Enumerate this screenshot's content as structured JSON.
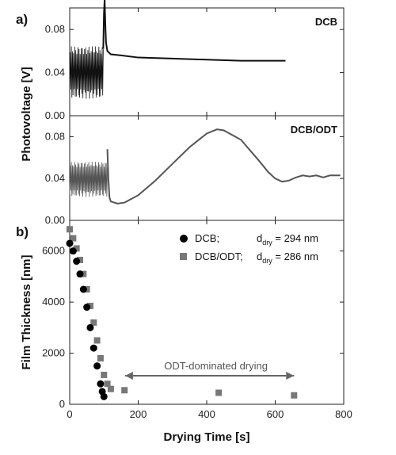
{
  "chart_data": [
    {
      "panel": "a)",
      "type": "line",
      "label": "DCB",
      "ylabel": "Photovoltage [V]",
      "xlim": [
        0,
        800
      ],
      "ylim": [
        0,
        0.1
      ],
      "yticks": [
        "0.00",
        "0.04",
        "0.08"
      ],
      "ytick_values": [
        0,
        0.04,
        0.08
      ],
      "color": "#111111",
      "oscillation": {
        "x_start": 0,
        "x_end": 98,
        "low": 0.018,
        "high": 0.063
      },
      "x": [
        98,
        100,
        102,
        104,
        106,
        110,
        120,
        150,
        200,
        300,
        400,
        500,
        600,
        630
      ],
      "y": [
        0.062,
        0.095,
        0.108,
        0.085,
        0.068,
        0.06,
        0.057,
        0.056,
        0.054,
        0.053,
        0.052,
        0.051,
        0.051,
        0.051
      ]
    },
    {
      "panel": "",
      "type": "line",
      "label": "DCB/ODT",
      "ylabel": "",
      "xlim": [
        0,
        800
      ],
      "ylim": [
        0,
        0.1
      ],
      "yticks": [
        "0.00",
        "0.04",
        "0.08"
      ],
      "ytick_values": [
        0,
        0.04,
        0.08
      ],
      "color": "#555555",
      "oscillation": {
        "x_start": 0,
        "x_end": 110,
        "low": 0.024,
        "high": 0.055
      },
      "x": [
        110,
        113,
        116,
        120,
        140,
        160,
        200,
        250,
        300,
        350,
        400,
        430,
        450,
        500,
        550,
        580,
        600,
        620,
        640,
        660,
        680,
        700,
        720,
        740,
        760,
        790
      ],
      "y": [
        0.068,
        0.04,
        0.022,
        0.018,
        0.016,
        0.017,
        0.024,
        0.038,
        0.054,
        0.07,
        0.083,
        0.087,
        0.086,
        0.077,
        0.058,
        0.046,
        0.04,
        0.037,
        0.038,
        0.041,
        0.043,
        0.042,
        0.043,
        0.041,
        0.043,
        0.043
      ]
    },
    {
      "panel": "b)",
      "type": "scatter",
      "xlabel": "Drying Time [s]",
      "ylabel": "Film Thickness [nm]",
      "xlim": [
        0,
        800
      ],
      "ylim": [
        0,
        7200
      ],
      "xticks": [
        0,
        200,
        400,
        600,
        800
      ],
      "yticks": [
        0,
        2000,
        4000,
        6000
      ],
      "series": [
        {
          "name": "DCB;",
          "legend_value_prefix": "d",
          "legend_value_sub": "dry",
          "legend_value_suffix": " = 294 nm",
          "marker": "circle",
          "color": "#000000",
          "x": [
            0,
            10,
            20,
            30,
            40,
            50,
            60,
            70,
            80,
            90,
            95,
            100
          ],
          "y": [
            6300,
            6000,
            5600,
            5100,
            4500,
            3800,
            3000,
            2200,
            1500,
            800,
            500,
            300
          ]
        },
        {
          "name": "DCB/ODT;",
          "legend_value_prefix": "d",
          "legend_value_sub": "dry",
          "legend_value_suffix": " = 286 nm",
          "marker": "square",
          "color": "#777777",
          "x": [
            0,
            10,
            20,
            30,
            40,
            50,
            60,
            70,
            80,
            90,
            100,
            110,
            120,
            160,
            435,
            655
          ],
          "y": [
            6850,
            6500,
            6100,
            5650,
            5100,
            4500,
            3850,
            3200,
            2500,
            1800,
            1150,
            800,
            600,
            550,
            450,
            350
          ]
        }
      ],
      "annotation": {
        "text": "ODT-dominated drying",
        "x_start": 120,
        "x_end": 655,
        "y": 1550
      }
    }
  ]
}
